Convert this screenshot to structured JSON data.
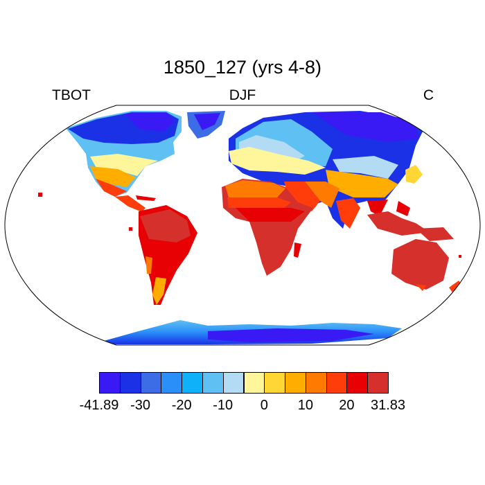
{
  "title": "1850_127 (yrs 4-8)",
  "left_label": "TBOT",
  "center_label": "DJF",
  "right_label": "C",
  "colorbar": {
    "colors": [
      "#3a1af4",
      "#1a31e6",
      "#3c6de6",
      "#2a8ff8",
      "#0fb2f9",
      "#5ec0f3",
      "#b3dcf4",
      "#fff59a",
      "#ffd633",
      "#ffae00",
      "#ff7a00",
      "#ff3d0a",
      "#e70004",
      "#d6302c"
    ],
    "labels": [
      "-41.89",
      "-30",
      "-20",
      "-10",
      "0",
      "10",
      "20",
      "31.83"
    ]
  }
}
